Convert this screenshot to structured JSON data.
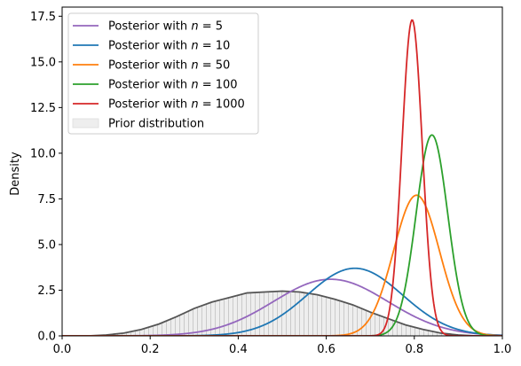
{
  "chart_data": {
    "type": "line",
    "title": "",
    "xlabel": "",
    "ylabel": "Density",
    "xlim": [
      0.0,
      1.0
    ],
    "ylim": [
      0.0,
      18.0
    ],
    "grid": false,
    "legend_position": "top-left",
    "x_ticks": [
      {
        "value": 0.0,
        "label": "0.0"
      },
      {
        "value": 0.2,
        "label": "0.2"
      },
      {
        "value": 0.4,
        "label": "0.4"
      },
      {
        "value": 0.6,
        "label": "0.6"
      },
      {
        "value": 0.8,
        "label": "0.8"
      },
      {
        "value": 1.0,
        "label": "1.0"
      }
    ],
    "y_ticks": [
      {
        "value": 0.0,
        "label": "0.0"
      },
      {
        "value": 2.5,
        "label": "2.5"
      },
      {
        "value": 5.0,
        "label": "5.0"
      },
      {
        "value": 7.5,
        "label": "7.5"
      },
      {
        "value": 10.0,
        "label": "10.0"
      },
      {
        "value": 12.5,
        "label": "12.5"
      },
      {
        "value": 15.0,
        "label": "15.0"
      },
      {
        "value": 17.5,
        "label": "17.5"
      }
    ],
    "series": [
      {
        "name": "Posterior with n = 5",
        "name_prefix": "Posterior with ",
        "name_var": "n",
        "name_suffix": " = 5",
        "color": "#9467bd",
        "peak_x": 0.61,
        "peak_y": 3.1,
        "sd": 0.13
      },
      {
        "name": "Posterior with n = 10",
        "name_prefix": "Posterior with ",
        "name_var": "n",
        "name_suffix": " = 10",
        "color": "#1f77b4",
        "peak_x": 0.665,
        "peak_y": 3.7,
        "sd": 0.108
      },
      {
        "name": "Posterior with n = 50",
        "name_prefix": "Posterior with ",
        "name_var": "n",
        "name_suffix": " = 50",
        "color": "#ff7f0e",
        "peak_x": 0.805,
        "peak_y": 7.7,
        "sd": 0.052
      },
      {
        "name": "Posterior with n = 100",
        "name_prefix": "Posterior with ",
        "name_var": "n",
        "name_suffix": " = 100",
        "color": "#2ca02c",
        "peak_x": 0.84,
        "peak_y": 11.0,
        "sd": 0.036
      },
      {
        "name": "Posterior with n = 1000",
        "name_prefix": "Posterior with ",
        "name_var": "n",
        "name_suffix": " = 1000",
        "color": "#d62728",
        "peak_x": 0.795,
        "peak_y": 17.3,
        "sd": 0.023
      }
    ],
    "prior": {
      "name": "Prior distribution",
      "line_color": "#555555",
      "fill_color": "#eeeeee",
      "hatch_color": "#bbbbbb",
      "x": [
        0.0,
        0.06,
        0.1,
        0.14,
        0.18,
        0.22,
        0.26,
        0.3,
        0.34,
        0.38,
        0.42,
        0.46,
        0.5,
        0.54,
        0.58,
        0.62,
        0.66,
        0.7,
        0.74,
        0.78,
        0.82,
        0.86,
        0.9,
        0.94,
        0.98,
        1.0
      ],
      "y": [
        0.0,
        0.0,
        0.05,
        0.15,
        0.35,
        0.65,
        1.05,
        1.5,
        1.85,
        2.1,
        2.35,
        2.4,
        2.45,
        2.4,
        2.25,
        2.0,
        1.7,
        1.3,
        0.95,
        0.6,
        0.35,
        0.15,
        0.05,
        0.0,
        0.0,
        0.0
      ]
    }
  }
}
